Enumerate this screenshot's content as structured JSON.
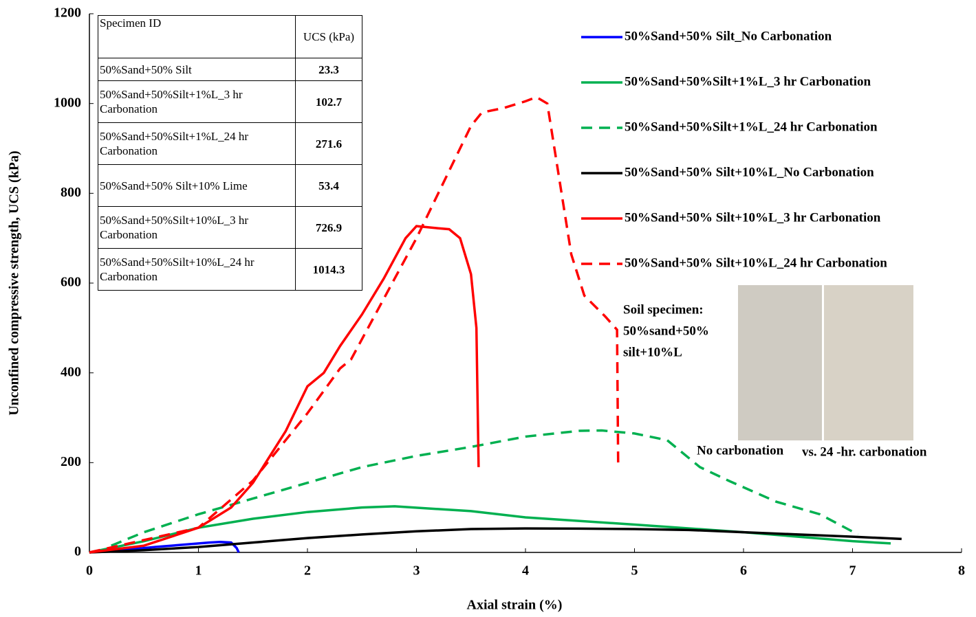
{
  "chart_data": {
    "type": "line",
    "xlabel": "Axial strain (%)",
    "ylabel": "Unconfined compressive strength, UCS (kPa)",
    "xlim": [
      0,
      8
    ],
    "xticks": [
      0,
      1,
      2,
      3,
      4,
      5,
      6,
      7,
      8
    ],
    "ylim": [
      0,
      1200
    ],
    "yticks": [
      0,
      200,
      400,
      600,
      800,
      1000,
      1200
    ],
    "grid": false,
    "legend": "upper right",
    "series": [
      {
        "name": "50%Sand+50% Silt_No Carbonation",
        "color": "#0000ff",
        "dashed": false,
        "x": [
          0,
          0.3,
          0.6,
          0.9,
          1.1,
          1.2,
          1.3,
          1.35,
          1.37
        ],
        "values": [
          0,
          5,
          12,
          18,
          22,
          23.3,
          22,
          10,
          0
        ]
      },
      {
        "name": "50%Sand+50%Silt+1%L_3 hr Carbonation",
        "color": "#00b050",
        "dashed": false,
        "x": [
          0,
          0.5,
          1,
          1.5,
          2,
          2.5,
          2.8,
          3.5,
          4,
          5,
          6,
          6.5,
          7,
          7.35
        ],
        "values": [
          0,
          25,
          55,
          75,
          90,
          100,
          102.7,
          92,
          78,
          62,
          45,
          35,
          25,
          20
        ]
      },
      {
        "name": "50%Sand+50%Silt+1%L_24 hr Carbonation",
        "color": "#00b050",
        "dashed": true,
        "x": [
          0.2,
          0.5,
          1,
          1.5,
          2,
          2.5,
          3,
          3.5,
          4,
          4.5,
          4.7,
          5,
          5.3,
          5.6,
          5.87,
          6.3,
          6.7,
          7.05
        ],
        "values": [
          15,
          45,
          85,
          120,
          155,
          190,
          215,
          235,
          258,
          271,
          271.6,
          265,
          250,
          190,
          159,
          113,
          85,
          40
        ]
      },
      {
        "name": "50%Sand+50% Silt+10%L_No Carbonation",
        "color": "#000000",
        "dashed": false,
        "x": [
          0,
          0.5,
          1,
          1.5,
          2,
          2.5,
          3,
          3.5,
          4,
          4.5,
          5,
          5.5,
          6,
          6.5,
          7,
          7.45
        ],
        "values": [
          0,
          5,
          12,
          22,
          32,
          40,
          47,
          52,
          53.4,
          53,
          52,
          50,
          45,
          40,
          35,
          30
        ]
      },
      {
        "name": "50%Sand+50% Silt+10%L_3 hr Carbonation",
        "color": "#ff0000",
        "dashed": false,
        "x": [
          0,
          0.5,
          1,
          1.3,
          1.5,
          1.8,
          2,
          2.15,
          2.3,
          2.5,
          2.7,
          2.9,
          3,
          3.2,
          3.3,
          3.4,
          3.5,
          3.55,
          3.57
        ],
        "values": [
          0,
          15,
          55,
          100,
          155,
          270,
          370,
          400,
          460,
          530,
          610,
          700,
          726.9,
          722,
          720,
          700,
          620,
          500,
          190
        ]
      },
      {
        "name": "50%Sand+50% Silt+10%L_24 hr Carbonation",
        "color": "#ff0000",
        "dashed": true,
        "x": [
          0,
          1,
          1.5,
          2,
          2.3,
          2.4,
          2.6,
          2.8,
          3,
          3.2,
          3.5,
          3.6,
          3.8,
          4,
          4.1,
          4.2,
          4.35,
          4.42,
          4.54,
          4.73,
          4.84,
          4.85
        ],
        "values": [
          0,
          55,
          160,
          310,
          410,
          430,
          520,
          610,
          700,
          800,
          950,
          980,
          990,
          1005,
          1014.3,
          1000,
          771,
          664,
          572,
          526,
          496,
          200
        ]
      }
    ],
    "annotations": [
      "Soil specimen:",
      "50%sand+50%",
      "silt+10%L",
      "No carbonation",
      "vs. 24 -hr. carbonation"
    ],
    "table": {
      "header": [
        "Specimen ID",
        "UCS (kPa)"
      ],
      "rows": [
        [
          "50%Sand+50% Silt",
          23.3
        ],
        [
          "50%Sand+50%Silt+1%L_3 hr Carbonation",
          102.7
        ],
        [
          "50%Sand+50%Silt+1%L_24 hr Carbonation",
          271.6
        ],
        [
          "50%Sand+50% Silt+10% Lime",
          53.4
        ],
        [
          "50%Sand+50%Silt+10%L_3 hr Carbonation",
          726.9
        ],
        [
          "50%Sand+50%Silt+10%L_24 hr Carbonation",
          1014.3
        ]
      ]
    }
  }
}
